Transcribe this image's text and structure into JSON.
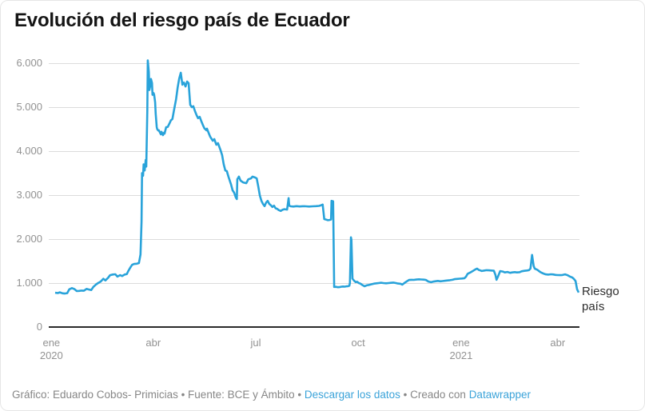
{
  "title": "Evolución del riesgo país de Ecuador",
  "series_label": "Riesgo país",
  "footer": {
    "credit": "Gráfico: Eduardo Cobos- Primicias • Fuente: BCE y Ámbito • ",
    "download_label": "Descargar los datos",
    "created_with": " • Creado con ",
    "datawrapper_label": "Datawrapper"
  },
  "colors": {
    "line": "#29a3da",
    "gridline": "#dcdcdc",
    "axis_baseline": "#2b2b2b",
    "tick_label": "#929292",
    "title_text": "#151515",
    "footer_text": "#868686",
    "link": "#3ba3d9",
    "series_label_text": "#2e2e2e",
    "background": "#ffffff"
  },
  "chart_data": {
    "type": "line",
    "title": "Evolución del riesgo país de Ecuador",
    "xlabel": "",
    "ylabel": "",
    "x_axis": {
      "start": "ene 2020",
      "end": "abr 2021"
    },
    "ylim": [
      0,
      6000
    ],
    "grid": "horizontal",
    "legend_position": "end-of-line",
    "y_ticks": [
      {
        "v": 0,
        "label": "0"
      },
      {
        "v": 1000,
        "label": "1.000"
      },
      {
        "v": 2000,
        "label": "2.000"
      },
      {
        "v": 3000,
        "label": "3.000"
      },
      {
        "v": 4000,
        "label": "4.000"
      },
      {
        "v": 5000,
        "label": "5.000"
      },
      {
        "v": 6000,
        "label": "6.000"
      }
    ],
    "x_ticks": [
      {
        "f": 0.005,
        "label": "ene",
        "year": "2020"
      },
      {
        "f": 0.197,
        "label": "abr"
      },
      {
        "f": 0.39,
        "label": "jul"
      },
      {
        "f": 0.583,
        "label": "oct"
      },
      {
        "f": 0.777,
        "label": "ene",
        "year": "2021"
      },
      {
        "f": 0.959,
        "label": "abr"
      }
    ],
    "series": [
      {
        "name": "Riesgo país",
        "color": "#29a3da",
        "points": [
          [
            0,
            780
          ],
          [
            0.005,
            772
          ],
          [
            0.009,
            790
          ],
          [
            0.014,
            768
          ],
          [
            0.018,
            762
          ],
          [
            0.023,
            770
          ],
          [
            0.027,
            858
          ],
          [
            0.032,
            885
          ],
          [
            0.037,
            862
          ],
          [
            0.041,
            820
          ],
          [
            0.046,
            822
          ],
          [
            0.05,
            830
          ],
          [
            0.055,
            826
          ],
          [
            0.06,
            868
          ],
          [
            0.064,
            855
          ],
          [
            0.069,
            842
          ],
          [
            0.073,
            912
          ],
          [
            0.078,
            968
          ],
          [
            0.082,
            1000
          ],
          [
            0.087,
            1035
          ],
          [
            0.092,
            1098
          ],
          [
            0.096,
            1060
          ],
          [
            0.101,
            1120
          ],
          [
            0.105,
            1180
          ],
          [
            0.11,
            1195
          ],
          [
            0.115,
            1200
          ],
          [
            0.119,
            1148
          ],
          [
            0.124,
            1180
          ],
          [
            0.128,
            1160
          ],
          [
            0.133,
            1195
          ],
          [
            0.137,
            1205
          ],
          [
            0.14,
            1280
          ],
          [
            0.144,
            1360
          ],
          [
            0.147,
            1415
          ],
          [
            0.151,
            1435
          ],
          [
            0.156,
            1440
          ],
          [
            0.16,
            1455
          ],
          [
            0.163,
            1650
          ],
          [
            0.165,
            2400
          ],
          [
            0.166,
            3500
          ],
          [
            0.168,
            3440
          ],
          [
            0.169,
            3700
          ],
          [
            0.171,
            3560
          ],
          [
            0.173,
            3800
          ],
          [
            0.174,
            3650
          ],
          [
            0.176,
            4900
          ],
          [
            0.177,
            6063
          ],
          [
            0.179,
            5800
          ],
          [
            0.18,
            5390
          ],
          [
            0.182,
            5500
          ],
          [
            0.183,
            5640
          ],
          [
            0.185,
            5550
          ],
          [
            0.186,
            5280
          ],
          [
            0.188,
            5320
          ],
          [
            0.189,
            5290
          ],
          [
            0.191,
            5110
          ],
          [
            0.192,
            4850
          ],
          [
            0.194,
            4545
          ],
          [
            0.195,
            4500
          ],
          [
            0.197,
            4470
          ],
          [
            0.198,
            4473
          ],
          [
            0.2,
            4430
          ],
          [
            0.202,
            4382
          ],
          [
            0.203,
            4440
          ],
          [
            0.205,
            4400
          ],
          [
            0.206,
            4364
          ],
          [
            0.208,
            4418
          ],
          [
            0.209,
            4400
          ],
          [
            0.212,
            4545
          ],
          [
            0.215,
            4550
          ],
          [
            0.218,
            4620
          ],
          [
            0.221,
            4700
          ],
          [
            0.224,
            4730
          ],
          [
            0.227,
            4930
          ],
          [
            0.231,
            5180
          ],
          [
            0.234,
            5450
          ],
          [
            0.237,
            5650
          ],
          [
            0.24,
            5782
          ],
          [
            0.243,
            5510
          ],
          [
            0.246,
            5560
          ],
          [
            0.249,
            5470
          ],
          [
            0.252,
            5582
          ],
          [
            0.255,
            5545
          ],
          [
            0.258,
            5055
          ],
          [
            0.261,
            5000
          ],
          [
            0.264,
            5020
          ],
          [
            0.267,
            4910
          ],
          [
            0.27,
            4820
          ],
          [
            0.273,
            4750
          ],
          [
            0.276,
            4780
          ],
          [
            0.279,
            4690
          ],
          [
            0.282,
            4600
          ],
          [
            0.285,
            4520
          ],
          [
            0.289,
            4473
          ],
          [
            0.29,
            4510
          ],
          [
            0.293,
            4420
          ],
          [
            0.296,
            4330
          ],
          [
            0.301,
            4236
          ],
          [
            0.304,
            4273
          ],
          [
            0.308,
            4145
          ],
          [
            0.311,
            4182
          ],
          [
            0.316,
            4018
          ],
          [
            0.319,
            3909
          ],
          [
            0.322,
            3700
          ],
          [
            0.325,
            3560
          ],
          [
            0.328,
            3545
          ],
          [
            0.331,
            3420
          ],
          [
            0.336,
            3240
          ],
          [
            0.339,
            3110
          ],
          [
            0.342,
            3055
          ],
          [
            0.345,
            2950
          ],
          [
            0.347,
            2910
          ],
          [
            0.348,
            3360
          ],
          [
            0.351,
            3420
          ],
          [
            0.354,
            3330
          ],
          [
            0.359,
            3290
          ],
          [
            0.365,
            3270
          ],
          [
            0.369,
            3360
          ],
          [
            0.374,
            3380
          ],
          [
            0.377,
            3420
          ],
          [
            0.382,
            3400
          ],
          [
            0.385,
            3380
          ],
          [
            0.388,
            3200
          ],
          [
            0.391,
            2990
          ],
          [
            0.394,
            2870
          ],
          [
            0.397,
            2800
          ],
          [
            0.4,
            2750
          ],
          [
            0.403,
            2830
          ],
          [
            0.406,
            2870
          ],
          [
            0.409,
            2800
          ],
          [
            0.412,
            2770
          ],
          [
            0.415,
            2730
          ],
          [
            0.418,
            2760
          ],
          [
            0.421,
            2700
          ],
          [
            0.424,
            2690
          ],
          [
            0.427,
            2660
          ],
          [
            0.431,
            2640
          ],
          [
            0.434,
            2665
          ],
          [
            0.438,
            2680
          ],
          [
            0.443,
            2670
          ],
          [
            0.446,
            2930
          ],
          [
            0.447,
            2760
          ],
          [
            0.45,
            2745
          ],
          [
            0.455,
            2740
          ],
          [
            0.461,
            2750
          ],
          [
            0.467,
            2742
          ],
          [
            0.473,
            2748
          ],
          [
            0.479,
            2745
          ],
          [
            0.485,
            2740
          ],
          [
            0.492,
            2746
          ],
          [
            0.498,
            2750
          ],
          [
            0.504,
            2755
          ],
          [
            0.508,
            2770
          ],
          [
            0.511,
            2785
          ],
          [
            0.514,
            2455
          ],
          [
            0.518,
            2440
          ],
          [
            0.521,
            2430
          ],
          [
            0.524,
            2435
          ],
          [
            0.527,
            2445
          ],
          [
            0.528,
            2870
          ],
          [
            0.531,
            2858
          ],
          [
            0.533,
            912
          ],
          [
            0.537,
            915
          ],
          [
            0.54,
            905
          ],
          [
            0.543,
            908
          ],
          [
            0.547,
            918
          ],
          [
            0.55,
            922
          ],
          [
            0.553,
            918
          ],
          [
            0.556,
            925
          ],
          [
            0.559,
            928
          ],
          [
            0.562,
            940
          ],
          [
            0.563,
            1000
          ],
          [
            0.565,
            2040
          ],
          [
            0.566,
            1980
          ],
          [
            0.568,
            1100
          ],
          [
            0.571,
            1055
          ],
          [
            0.574,
            1022
          ],
          [
            0.577,
            1030
          ],
          [
            0.58,
            1000
          ],
          [
            0.583,
            988
          ],
          [
            0.586,
            962
          ],
          [
            0.591,
            928
          ],
          [
            0.595,
            948
          ],
          [
            0.6,
            958
          ],
          [
            0.605,
            975
          ],
          [
            0.609,
            988
          ],
          [
            0.614,
            995
          ],
          [
            0.618,
            1000
          ],
          [
            0.623,
            1008
          ],
          [
            0.627,
            1000
          ],
          [
            0.632,
            994
          ],
          [
            0.637,
            1000
          ],
          [
            0.641,
            1006
          ],
          [
            0.646,
            1010
          ],
          [
            0.65,
            1002
          ],
          [
            0.655,
            990
          ],
          [
            0.66,
            984
          ],
          [
            0.663,
            965
          ],
          [
            0.667,
            1000
          ],
          [
            0.672,
            1042
          ],
          [
            0.676,
            1070
          ],
          [
            0.681,
            1075
          ],
          [
            0.685,
            1072
          ],
          [
            0.69,
            1080
          ],
          [
            0.695,
            1086
          ],
          [
            0.699,
            1082
          ],
          [
            0.704,
            1078
          ],
          [
            0.708,
            1072
          ],
          [
            0.713,
            1035
          ],
          [
            0.718,
            1020
          ],
          [
            0.722,
            1032
          ],
          [
            0.727,
            1042
          ],
          [
            0.731,
            1050
          ],
          [
            0.736,
            1040
          ],
          [
            0.74,
            1045
          ],
          [
            0.745,
            1052
          ],
          [
            0.75,
            1060
          ],
          [
            0.754,
            1066
          ],
          [
            0.759,
            1075
          ],
          [
            0.763,
            1090
          ],
          [
            0.768,
            1094
          ],
          [
            0.773,
            1100
          ],
          [
            0.777,
            1104
          ],
          [
            0.782,
            1110
          ],
          [
            0.785,
            1150
          ],
          [
            0.788,
            1210
          ],
          [
            0.792,
            1235
          ],
          [
            0.797,
            1268
          ],
          [
            0.802,
            1305
          ],
          [
            0.806,
            1330
          ],
          [
            0.809,
            1300
          ],
          [
            0.812,
            1288
          ],
          [
            0.815,
            1275
          ],
          [
            0.82,
            1286
          ],
          [
            0.824,
            1292
          ],
          [
            0.829,
            1290
          ],
          [
            0.833,
            1286
          ],
          [
            0.838,
            1280
          ],
          [
            0.841,
            1185
          ],
          [
            0.843,
            1075
          ],
          [
            0.846,
            1150
          ],
          [
            0.85,
            1272
          ],
          [
            0.855,
            1262
          ],
          [
            0.859,
            1242
          ],
          [
            0.864,
            1252
          ],
          [
            0.869,
            1232
          ],
          [
            0.873,
            1242
          ],
          [
            0.878,
            1250
          ],
          [
            0.882,
            1242
          ],
          [
            0.887,
            1248
          ],
          [
            0.891,
            1268
          ],
          [
            0.896,
            1278
          ],
          [
            0.901,
            1285
          ],
          [
            0.905,
            1292
          ],
          [
            0.908,
            1330
          ],
          [
            0.911,
            1640
          ],
          [
            0.914,
            1390
          ],
          [
            0.916,
            1330
          ],
          [
            0.921,
            1302
          ],
          [
            0.924,
            1275
          ],
          [
            0.928,
            1242
          ],
          [
            0.933,
            1215
          ],
          [
            0.937,
            1198
          ],
          [
            0.942,
            1192
          ],
          [
            0.947,
            1200
          ],
          [
            0.951,
            1196
          ],
          [
            0.956,
            1186
          ],
          [
            0.96,
            1182
          ],
          [
            0.965,
            1180
          ],
          [
            0.969,
            1184
          ],
          [
            0.974,
            1198
          ],
          [
            0.979,
            1178
          ],
          [
            0.983,
            1150
          ],
          [
            0.988,
            1125
          ],
          [
            0.991,
            1092
          ],
          [
            0.994,
            1048
          ],
          [
            0.997,
            860
          ],
          [
            1,
            785
          ]
        ]
      }
    ]
  }
}
